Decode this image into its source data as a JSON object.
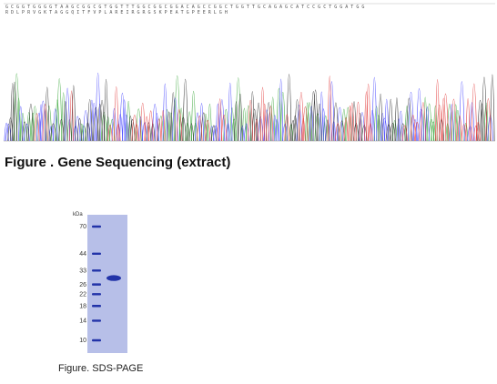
{
  "figure_1": {
    "caption": "Figure . Gene Sequencing (extract)",
    "trace_colors": {
      "A": "#2ca02c",
      "C": "#3a3aff",
      "G": "#222222",
      "T": "#e03030"
    },
    "peak_count": 240
  },
  "figure_2": {
    "caption": "Figure. SDS-PAGE",
    "unit_label": "kDa",
    "marker_bands": [
      {
        "label": "70",
        "kda": 70
      },
      {
        "label": "44",
        "kda": 44
      },
      {
        "label": "33",
        "kda": 33
      },
      {
        "label": "26",
        "kda": 26
      },
      {
        "label": "22",
        "kda": 22
      },
      {
        "label": "18",
        "kda": 18
      },
      {
        "label": "14",
        "kda": 14
      },
      {
        "label": "10",
        "kda": 10
      }
    ],
    "sample_band_kda": 29,
    "gel_color": "#b7bfe8",
    "band_color": "#2233a8"
  }
}
